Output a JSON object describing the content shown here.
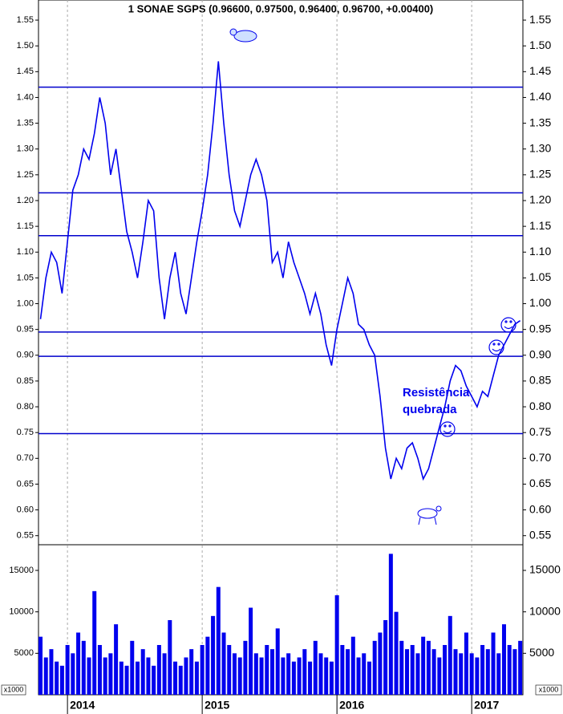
{
  "chart_data": [
    {
      "type": "line",
      "title": "1 SONAE SGPS (0.96600, 0.97500, 0.96400, 0.96700, +0.00400)",
      "color": "#0000ee",
      "x": [
        2013.8,
        2013.84,
        2013.88,
        2013.92,
        2013.96,
        2014.0,
        2014.04,
        2014.08,
        2014.12,
        2014.16,
        2014.2,
        2014.24,
        2014.28,
        2014.32,
        2014.36,
        2014.4,
        2014.44,
        2014.48,
        2014.52,
        2014.56,
        2014.6,
        2014.64,
        2014.68,
        2014.72,
        2014.76,
        2014.8,
        2014.84,
        2014.88,
        2014.92,
        2014.96,
        2015.0,
        2015.04,
        2015.08,
        2015.12,
        2015.16,
        2015.2,
        2015.24,
        2015.28,
        2015.32,
        2015.36,
        2015.4,
        2015.44,
        2015.48,
        2015.52,
        2015.56,
        2015.6,
        2015.64,
        2015.68,
        2015.72,
        2015.76,
        2015.8,
        2015.84,
        2015.88,
        2015.92,
        2015.96,
        2016.0,
        2016.04,
        2016.08,
        2016.12,
        2016.16,
        2016.2,
        2016.24,
        2016.28,
        2016.32,
        2016.36,
        2016.4,
        2016.44,
        2016.48,
        2016.52,
        2016.56,
        2016.6,
        2016.64,
        2016.68,
        2016.72,
        2016.76,
        2016.8,
        2016.84,
        2016.88,
        2016.92,
        2016.96,
        2017.0,
        2017.04,
        2017.08,
        2017.12,
        2017.16,
        2017.2,
        2017.24,
        2017.28,
        2017.32,
        2017.36
      ],
      "values": [
        0.97,
        1.05,
        1.1,
        1.08,
        1.02,
        1.12,
        1.22,
        1.25,
        1.3,
        1.28,
        1.33,
        1.4,
        1.35,
        1.25,
        1.3,
        1.22,
        1.14,
        1.1,
        1.05,
        1.12,
        1.2,
        1.18,
        1.05,
        0.97,
        1.05,
        1.1,
        1.02,
        0.98,
        1.05,
        1.12,
        1.18,
        1.25,
        1.35,
        1.47,
        1.35,
        1.25,
        1.18,
        1.15,
        1.2,
        1.25,
        1.28,
        1.25,
        1.2,
        1.08,
        1.1,
        1.05,
        1.12,
        1.08,
        1.05,
        1.02,
        0.98,
        1.02,
        0.98,
        0.92,
        0.88,
        0.95,
        1.0,
        1.05,
        1.02,
        0.96,
        0.95,
        0.92,
        0.9,
        0.82,
        0.72,
        0.66,
        0.7,
        0.68,
        0.72,
        0.73,
        0.7,
        0.66,
        0.68,
        0.72,
        0.76,
        0.8,
        0.85,
        0.88,
        0.87,
        0.84,
        0.82,
        0.8,
        0.83,
        0.82,
        0.86,
        0.9,
        0.92,
        0.94,
        0.96,
        0.967
      ],
      "xlim": [
        2013.785,
        2017.38
      ],
      "ylim": [
        0.534,
        1.589
      ],
      "yticks": [
        0.55,
        {
          "value": 0.6,
          "label": "0.60"
        },
        0.65,
        {
          "value": 0.7,
          "label": "0.70"
        },
        0.75,
        {
          "value": 0.8,
          "label": "0.80"
        },
        0.85,
        {
          "value": 0.9,
          "label": "0.90"
        },
        0.95,
        {
          "value": 1.0,
          "label": "1.00"
        },
        1.05,
        {
          "value": 1.1,
          "label": "1.10"
        },
        1.15,
        {
          "value": 1.2,
          "label": "1.20"
        },
        1.25,
        {
          "value": 1.3,
          "label": "1.30"
        },
        1.35,
        {
          "value": 1.4,
          "label": "1.40"
        },
        1.45,
        {
          "value": 1.5,
          "label": "1.50"
        },
        1.55
      ],
      "hlines": [
        1.42,
        1.215,
        1.132,
        0.945,
        0.898,
        0.748
      ],
      "annotation": [
        "Resistência",
        "quebrada"
      ]
    },
    {
      "type": "bar",
      "color": "#0000ee",
      "x": [
        2013.8,
        2013.84,
        2013.88,
        2013.92,
        2013.96,
        2014.0,
        2014.04,
        2014.08,
        2014.12,
        2014.16,
        2014.2,
        2014.24,
        2014.28,
        2014.32,
        2014.36,
        2014.4,
        2014.44,
        2014.48,
        2014.52,
        2014.56,
        2014.6,
        2014.64,
        2014.68,
        2014.72,
        2014.76,
        2014.8,
        2014.84,
        2014.88,
        2014.92,
        2014.96,
        2015.0,
        2015.04,
        2015.08,
        2015.12,
        2015.16,
        2015.2,
        2015.24,
        2015.28,
        2015.32,
        2015.36,
        2015.4,
        2015.44,
        2015.48,
        2015.52,
        2015.56,
        2015.6,
        2015.64,
        2015.68,
        2015.72,
        2015.76,
        2015.8,
        2015.84,
        2015.88,
        2015.92,
        2015.96,
        2016.0,
        2016.04,
        2016.08,
        2016.12,
        2016.16,
        2016.2,
        2016.24,
        2016.28,
        2016.32,
        2016.36,
        2016.4,
        2016.44,
        2016.48,
        2016.52,
        2016.56,
        2016.6,
        2016.64,
        2016.68,
        2016.72,
        2016.76,
        2016.8,
        2016.84,
        2016.88,
        2016.92,
        2016.96,
        2017.0,
        2017.04,
        2017.08,
        2017.12,
        2017.16,
        2017.2,
        2017.24,
        2017.28,
        2017.32,
        2017.36
      ],
      "values": [
        7000,
        4500,
        5500,
        4000,
        3500,
        6000,
        5000,
        7500,
        6500,
        4500,
        12500,
        6000,
        4500,
        5000,
        8500,
        4000,
        3500,
        6500,
        4000,
        5500,
        4500,
        3500,
        6000,
        5000,
        9000,
        4000,
        3500,
        4500,
        5500,
        4000,
        6000,
        7000,
        9500,
        13000,
        7500,
        6000,
        5000,
        4500,
        6500,
        10500,
        5000,
        4500,
        6000,
        5500,
        8000,
        4500,
        5000,
        4000,
        4500,
        5500,
        4000,
        6500,
        5000,
        4500,
        4000,
        12000,
        6000,
        5500,
        7000,
        4500,
        5000,
        4000,
        6500,
        7500,
        9000,
        17000,
        10000,
        6500,
        5500,
        6000,
        5000,
        7000,
        6500,
        5500,
        4500,
        6000,
        9500,
        5500,
        5000,
        7500,
        5000,
        4500,
        6000,
        5500,
        7500,
        5000,
        8500,
        6000,
        5500,
        6500
      ],
      "xlim": [
        2013.785,
        2017.38
      ],
      "ylim": [
        0,
        18000
      ],
      "yticks": [
        5000,
        10000,
        15000
      ],
      "xticks": [
        2014,
        2015,
        2016,
        2017
      ],
      "unit_label": "x1000"
    }
  ]
}
